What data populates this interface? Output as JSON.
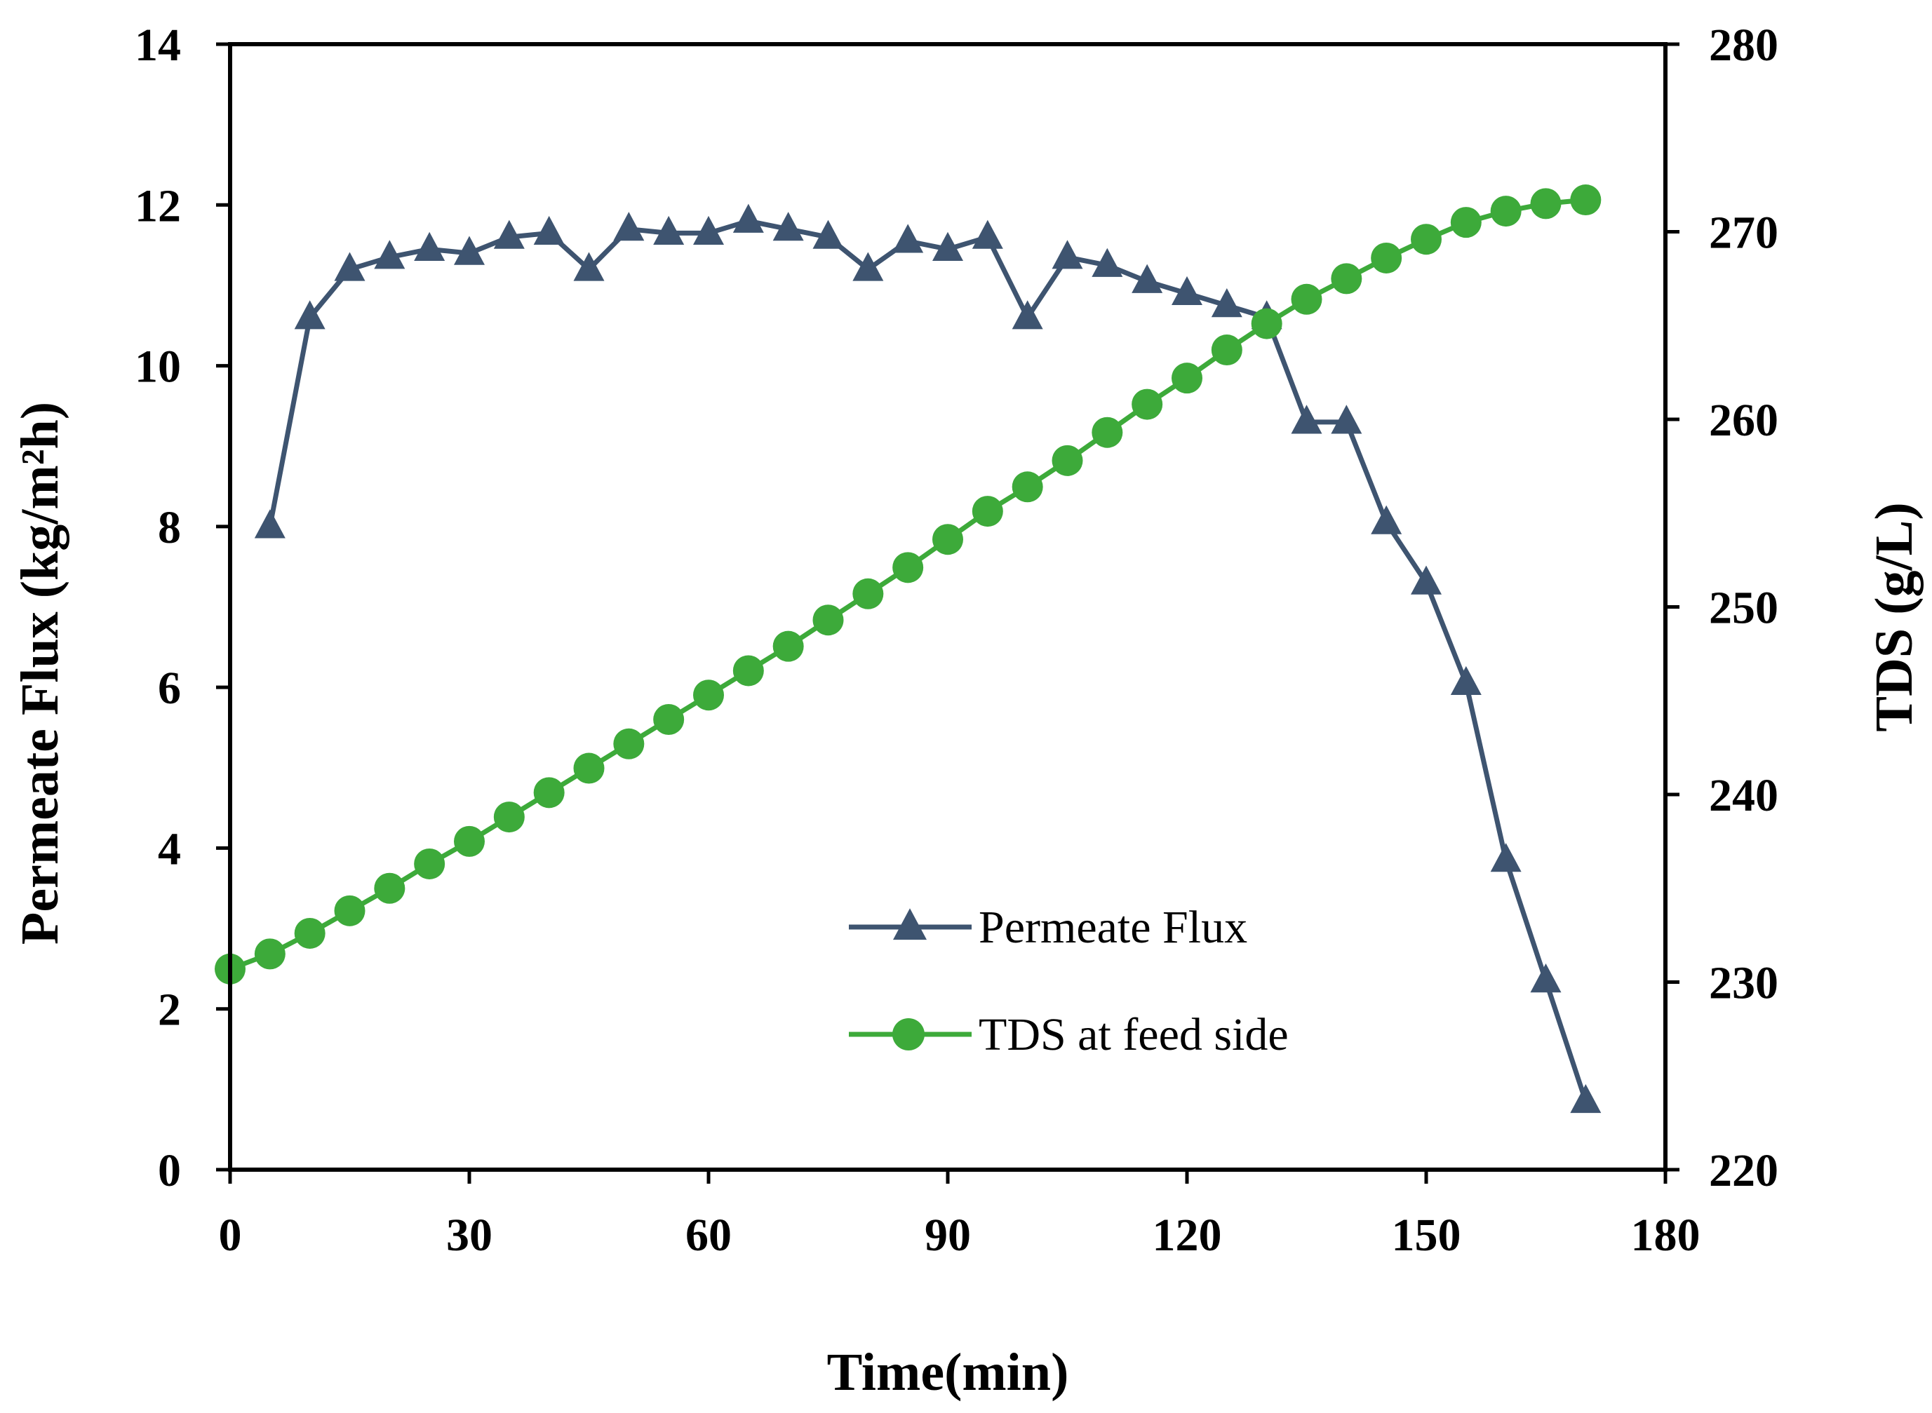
{
  "chart_data": {
    "type": "line",
    "title": "",
    "xlabel": "Time(min)",
    "ylabel": "Permeate Flux (kg/m²h)",
    "y2label": "TDS (g/L)",
    "xlim": [
      0,
      180
    ],
    "ylim": [
      0,
      14
    ],
    "y2lim": [
      220,
      280
    ],
    "grid": false,
    "legend_position": "bottom-right",
    "x_ticks": [
      "0",
      "30",
      "60",
      "90",
      "120",
      "150",
      "180"
    ],
    "y_ticks": [
      "0",
      "2",
      "4",
      "6",
      "8",
      "10",
      "12",
      "14"
    ],
    "y2_ticks": [
      "220",
      "230",
      "240",
      "250",
      "260",
      "270",
      "280"
    ],
    "series": [
      {
        "name": "Permeate Flux",
        "axis": "left",
        "marker": "triangle",
        "color": "#3E5470",
        "x": [
          5,
          10,
          15,
          20,
          25,
          30,
          35,
          40,
          45,
          50,
          55,
          60,
          65,
          70,
          75,
          80,
          85,
          90,
          95,
          100,
          105,
          110,
          115,
          120,
          125,
          130,
          135,
          140,
          145,
          150,
          155,
          160,
          165,
          170
        ],
        "values": [
          8.0,
          10.6,
          11.2,
          11.35,
          11.45,
          11.4,
          11.6,
          11.65,
          11.2,
          11.7,
          11.65,
          11.65,
          11.8,
          11.7,
          11.6,
          11.2,
          11.55,
          11.45,
          11.6,
          10.6,
          11.35,
          11.25,
          11.05,
          10.9,
          10.75,
          10.6,
          9.3,
          9.3,
          8.05,
          7.3,
          6.05,
          3.85,
          2.35,
          0.85
        ]
      },
      {
        "name": "TDS at feed side",
        "axis": "right",
        "marker": "circle",
        "color": "#3DAA3A",
        "x": [
          0,
          5,
          10,
          15,
          20,
          25,
          30,
          35,
          40,
          45,
          50,
          55,
          60,
          65,
          70,
          75,
          80,
          85,
          90,
          95,
          100,
          105,
          110,
          115,
          120,
          125,
          130,
          135,
          140,
          145,
          150,
          155,
          160,
          165,
          170
        ],
        "values": [
          230.7,
          231.5,
          232.6,
          233.8,
          235.0,
          236.3,
          237.5,
          238.8,
          240.1,
          241.4,
          242.7,
          244.0,
          245.3,
          246.6,
          247.9,
          249.3,
          250.7,
          252.1,
          253.6,
          255.1,
          256.4,
          257.8,
          259.3,
          260.8,
          262.2,
          263.7,
          265.1,
          266.4,
          267.5,
          268.6,
          269.6,
          270.5,
          271.1,
          271.5,
          271.7
        ]
      }
    ]
  }
}
